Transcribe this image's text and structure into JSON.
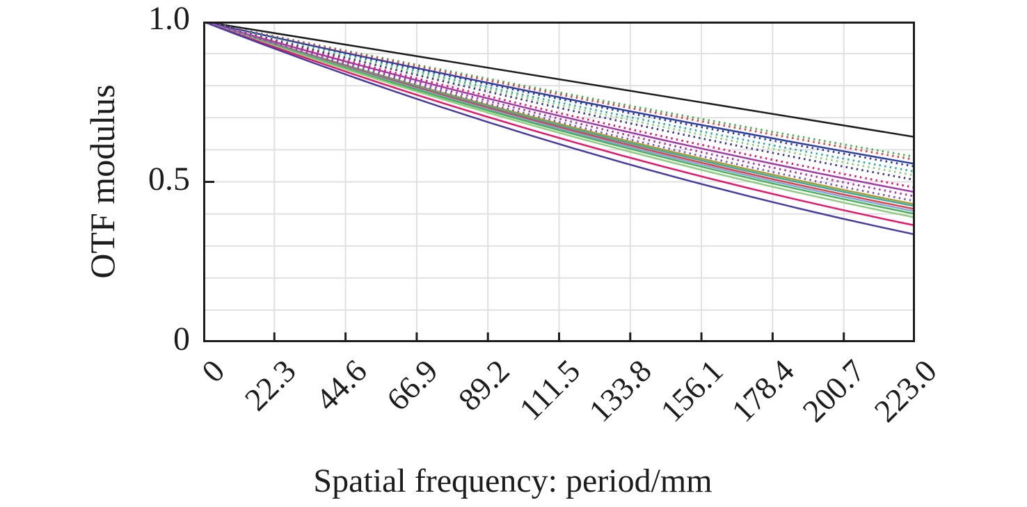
{
  "figure": {
    "background": "#ffffff",
    "axis_color": "#1c1c1c",
    "grid_color": "#e0e0e0"
  },
  "chart_data": {
    "type": "line",
    "title": "",
    "xlabel": "Spatial frequency: period/mm",
    "ylabel": "OTF modulus",
    "xlim": [
      0,
      223.0
    ],
    "ylim": [
      0,
      1.0
    ],
    "grid": "on",
    "legend": "none",
    "x_tick_labels": [
      "0",
      "22.3",
      "44.6",
      "66.9",
      "89.2",
      "111.5",
      "133.8",
      "156.1",
      "178.4",
      "200.7",
      "223.0"
    ],
    "y_tick_labels": [
      "1.0",
      "0.5",
      "0"
    ],
    "y_gridline_step": 0.1,
    "x": [
      0,
      111.5,
      223.0
    ],
    "series": [
      {
        "name": "diffraction-limit-black",
        "color": "#1c1c1c",
        "style": "solid",
        "values": [
          1.0,
          0.82,
          0.64
        ]
      },
      {
        "name": "tangential-blue",
        "color": "#2e3f9e",
        "style": "solid",
        "values": [
          1.0,
          0.764,
          0.556
        ]
      },
      {
        "name": "tangential-magenta",
        "color": "#a23aa5",
        "style": "solid",
        "values": [
          1.0,
          0.706,
          0.468
        ]
      },
      {
        "name": "tangential-olive",
        "color": "#a79c2f",
        "style": "solid",
        "values": [
          1.0,
          0.681,
          0.43
        ]
      },
      {
        "name": "tangential-teal",
        "color": "#3aaaa4",
        "style": "solid",
        "values": [
          1.0,
          0.676,
          0.424
        ]
      },
      {
        "name": "tangential-red",
        "color": "#e04045",
        "style": "solid",
        "values": [
          1.0,
          0.671,
          0.415
        ]
      },
      {
        "name": "tangential-steelblue",
        "color": "#7fa6dd",
        "style": "solid",
        "values": [
          1.0,
          0.666,
          0.408
        ]
      },
      {
        "name": "tangential-green",
        "color": "#4cb056",
        "style": "solid",
        "values": [
          1.0,
          0.661,
          0.4
        ]
      },
      {
        "name": "tangential-lightgreen",
        "color": "#8ecc80",
        "style": "solid",
        "values": [
          1.0,
          0.653,
          0.389
        ]
      },
      {
        "name": "tangential-crimson",
        "color": "#e4186a",
        "style": "solid",
        "values": [
          1.0,
          0.637,
          0.364
        ]
      },
      {
        "name": "tangential-indigo",
        "color": "#473ca2",
        "style": "solid",
        "values": [
          1.0,
          0.618,
          0.336
        ]
      },
      {
        "name": "sagittal-green",
        "color": "#4cb056",
        "style": "dotted",
        "values": [
          1.0,
          0.779,
          0.578
        ]
      },
      {
        "name": "sagittal-red",
        "color": "#e04045",
        "style": "dotted",
        "values": [
          1.0,
          0.773,
          0.569
        ]
      },
      {
        "name": "sagittal-blue",
        "color": "#2e3f9e",
        "style": "dotted",
        "values": [
          1.0,
          0.759,
          0.548
        ]
      },
      {
        "name": "sagittal-teal",
        "color": "#3aaaa4",
        "style": "dotted",
        "values": [
          1.0,
          0.748,
          0.532
        ]
      },
      {
        "name": "sagittal-lightgreen",
        "color": "#8ecc80",
        "style": "dotted",
        "values": [
          1.0,
          0.74,
          0.52
        ]
      },
      {
        "name": "sagittal-navy",
        "color": "#3d3a88",
        "style": "dotted",
        "values": [
          1.0,
          0.731,
          0.506
        ]
      },
      {
        "name": "sagittal-crimson",
        "color": "#e4186a",
        "style": "dotted",
        "values": [
          1.0,
          0.715,
          0.482
        ]
      },
      {
        "name": "sagittal-magenta",
        "color": "#a23aa5",
        "style": "dotted",
        "values": [
          1.0,
          0.697,
          0.455
        ]
      },
      {
        "name": "sagittal-violet",
        "color": "#7e57c8",
        "style": "dotted",
        "values": [
          1.0,
          0.687,
          0.44
        ]
      }
    ]
  }
}
